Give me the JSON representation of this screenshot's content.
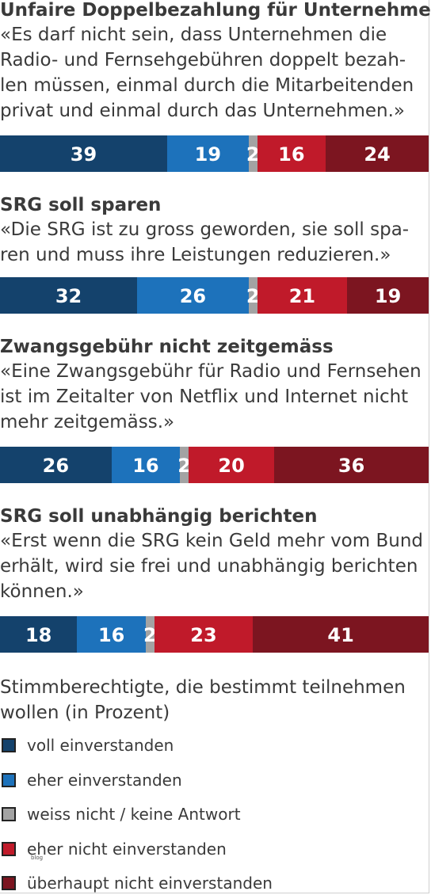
{
  "colors": {
    "voll einverstanden": "#14426c",
    "eher einverstanden": "#1d72bb",
    "weiss nicht / keine Antwort": "#a3a3a3",
    "eher nicht einverstanden": "#c01a2a",
    "überhaupt nicht einverstanden": "#7c1520"
  },
  "chart_data": {
    "type": "bar",
    "stacked": true,
    "orientation": "horizontal",
    "categories": [
      "Unfaire Doppelbezahlung für Unternehmen",
      "SRG soll sparen",
      "Zwangsgebühr nicht zeitgemäss",
      "SRG soll unabhängig berichten"
    ],
    "quotes": [
      "«Es darf nicht sein, dass Unternehmen die\nRadio- und Fernsehgebühren doppelt bezah-\nlen müssen, einmal durch die Mitarbeitenden\nprivat und einmal durch das Unternehmen.»",
      "«Die SRG ist zu gross geworden, sie soll spa-\nren und muss ihre Leistungen reduzieren.»",
      "«Eine Zwangsgebühr für Radio und Fernsehen\nist im Zeitalter von Netflix und Internet nicht\nmehr zeitgemäss.»",
      "«Erst wenn die SRG kein Geld mehr vom Bund\nerhält, wird sie frei und unabhängig berichten\nkönnen.»"
    ],
    "series": [
      {
        "name": "voll einverstanden",
        "values": [
          39,
          32,
          26,
          18
        ]
      },
      {
        "name": "eher einverstanden",
        "values": [
          19,
          26,
          16,
          16
        ]
      },
      {
        "name": "weiss nicht / keine Antwort",
        "values": [
          2,
          2,
          2,
          2
        ]
      },
      {
        "name": "eher nicht einverstanden",
        "values": [
          16,
          21,
          20,
          23
        ]
      },
      {
        "name": "überhaupt nicht einverstanden",
        "values": [
          24,
          19,
          36,
          41
        ]
      }
    ],
    "xlim": [
      0,
      100
    ],
    "legend_title": "Stimmberechtigte, die bestimmt teilnehmen\nwollen (in Prozent)",
    "legend_position": "bottom",
    "grid": false
  },
  "footer_mark": "blog"
}
